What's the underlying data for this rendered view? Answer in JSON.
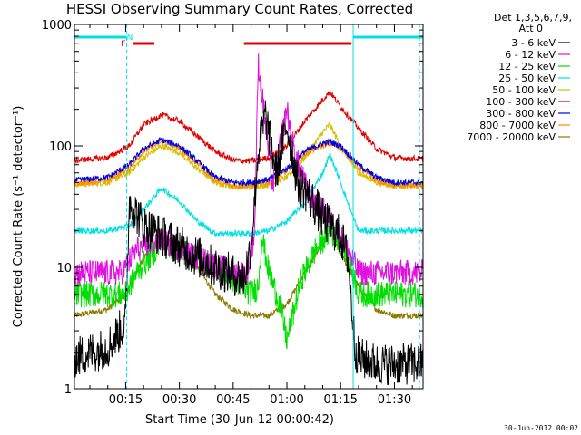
{
  "chart_data": {
    "type": "line",
    "title": "HESSI Observing Summary Count Rates, Corrected",
    "xlabel": "Start Time (30-Jun-12 00:00:42)",
    "ylabel": "Corrected Count Rate (s⁻¹ detector⁻¹)",
    "y_scale": "log",
    "xlim_min": [
      0.7,
      98.0
    ],
    "ylim": [
      1,
      1000
    ],
    "x_tick_labels": [
      "00:15",
      "00:30",
      "00:45",
      "01:00",
      "01:15",
      "01:30"
    ],
    "x_tick_values_min": [
      15,
      30,
      45,
      60,
      75,
      90
    ],
    "y_tick_labels": [
      "1",
      "10",
      "100",
      "1000"
    ],
    "y_tick_values": [
      1,
      10,
      100,
      1000
    ],
    "legend_title_1": "Det 1,3,5,6,7,9,",
    "legend_title_2": "Att 0",
    "series": [
      {
        "name": "3 - 6 keV",
        "color": "#000000",
        "values_min": [
          0.7,
          10,
          15,
          16,
          20,
          30,
          40,
          48,
          50,
          52,
          54,
          57,
          60,
          63,
          66,
          70,
          75,
          77,
          79,
          80,
          85,
          90,
          98
        ],
        "values": [
          1.8,
          2.2,
          3.5,
          35,
          22,
          15,
          10,
          8,
          15,
          90,
          180,
          60,
          150,
          50,
          40,
          25,
          18,
          12,
          2.2,
          1.8,
          1.6,
          1.6,
          1.6
        ]
      },
      {
        "name": "6 - 12 keV",
        "color": "#e010e0",
        "values_min": [
          0.7,
          14,
          15,
          18,
          25,
          35,
          45,
          49,
          51,
          52,
          54,
          56,
          59,
          60,
          62,
          66,
          70,
          74,
          76,
          78,
          80,
          90,
          98
        ],
        "values": [
          9,
          9,
          10,
          14,
          17,
          12,
          9,
          9,
          20,
          500,
          150,
          45,
          140,
          200,
          90,
          40,
          30,
          20,
          16,
          12,
          9,
          9,
          9
        ]
      },
      {
        "name": "12 - 25 keV",
        "color": "#00e000",
        "values_min": [
          0.7,
          15,
          18,
          25,
          35,
          45,
          50,
          52,
          53,
          55,
          58,
          60,
          64,
          68,
          72,
          76,
          79,
          80,
          90,
          98
        ],
        "values": [
          6,
          6,
          9,
          16,
          12,
          8,
          6,
          7,
          18,
          9,
          5,
          2.5,
          8,
          14,
          20,
          15,
          8,
          6,
          6,
          6
        ]
      },
      {
        "name": "25 - 50 keV",
        "color": "#00e0e0",
        "values_min": [
          0.7,
          10,
          16,
          20,
          25,
          30,
          35,
          40,
          45,
          50,
          55,
          60,
          65,
          70,
          72,
          75,
          78,
          80,
          90,
          98
        ],
        "values": [
          20,
          20,
          22,
          30,
          45,
          35,
          24,
          19,
          19,
          19,
          20,
          24,
          34,
          60,
          85,
          50,
          28,
          20,
          20,
          20
        ]
      },
      {
        "name": "50 - 100 keV",
        "color": "#d4c000",
        "values_min": [
          0.7,
          10,
          16,
          20,
          25,
          30,
          35,
          40,
          45,
          50,
          55,
          60,
          65,
          70,
          72,
          75,
          80,
          85,
          90,
          98
        ],
        "values": [
          48,
          50,
          60,
          80,
          100,
          88,
          65,
          50,
          46,
          46,
          48,
          55,
          80,
          130,
          150,
          100,
          60,
          50,
          47,
          47
        ]
      },
      {
        "name": "100 - 300 keV",
        "color": "#e00000",
        "values_min": [
          0.7,
          10,
          16,
          20,
          25,
          30,
          35,
          40,
          45,
          50,
          55,
          60,
          65,
          70,
          72,
          75,
          80,
          85,
          90,
          98
        ],
        "values": [
          76,
          80,
          100,
          150,
          180,
          160,
          120,
          90,
          76,
          75,
          80,
          100,
          160,
          240,
          280,
          210,
          140,
          95,
          80,
          78
        ]
      },
      {
        "name": "300 - 800 keV",
        "color": "#0000e0",
        "values_min": [
          0.7,
          10,
          16,
          20,
          25,
          30,
          35,
          40,
          45,
          50,
          55,
          60,
          65,
          70,
          72,
          75,
          80,
          85,
          90,
          98
        ],
        "values": [
          52,
          55,
          70,
          95,
          112,
          100,
          75,
          55,
          50,
          50,
          53,
          65,
          90,
          105,
          108,
          100,
          70,
          55,
          50,
          50
        ]
      },
      {
        "name": "800 - 7000 keV",
        "color": "#ff8c00",
        "values_min": [
          0.7,
          10,
          16,
          20,
          25,
          30,
          35,
          40,
          45,
          50,
          55,
          60,
          65,
          70,
          72,
          75,
          80,
          85,
          90,
          98
        ],
        "values": [
          49,
          52,
          66,
          90,
          108,
          96,
          72,
          52,
          47,
          47,
          50,
          62,
          86,
          101,
          104,
          96,
          66,
          52,
          47,
          47
        ]
      },
      {
        "name": "7000 - 20000 keV",
        "color": "#8b7a00",
        "values_min": [
          0.7,
          10,
          15,
          20,
          25,
          30,
          35,
          40,
          45,
          50,
          55,
          60,
          65,
          70,
          72,
          75,
          80,
          85,
          90,
          98
        ],
        "values": [
          4,
          4.5,
          6,
          12,
          18,
          15,
          10,
          6,
          4.5,
          4,
          4,
          5,
          9,
          16,
          20,
          13,
          7,
          4.5,
          4,
          4
        ]
      }
    ],
    "flag_bars": [
      {
        "color": "#00e0e0",
        "start_min": 0.7,
        "end_min": 15.3,
        "label": ""
      },
      {
        "color": "#e00000",
        "start_min": 17.0,
        "end_min": 23.0,
        "label": "F"
      },
      {
        "color": "#e00000",
        "start_min": 48.0,
        "end_min": 78.0,
        "label": ""
      },
      {
        "color": "#00e0e0",
        "start_min": 78.5,
        "end_min": 98.0,
        "label": ""
      }
    ],
    "flag_labels": [
      {
        "text": "F",
        "color": "#e00000",
        "at_min": 15.0
      },
      {
        "text": "N",
        "color": "#00e0e0",
        "at_min": 17.0
      }
    ],
    "vertical_markers_min": [
      {
        "at": 15.3,
        "style": "dashed"
      },
      {
        "at": 78.5,
        "style": "solid"
      },
      {
        "at": 97.0,
        "style": "dashed"
      }
    ],
    "timestamp": "30-Jun-2012 00:02"
  }
}
